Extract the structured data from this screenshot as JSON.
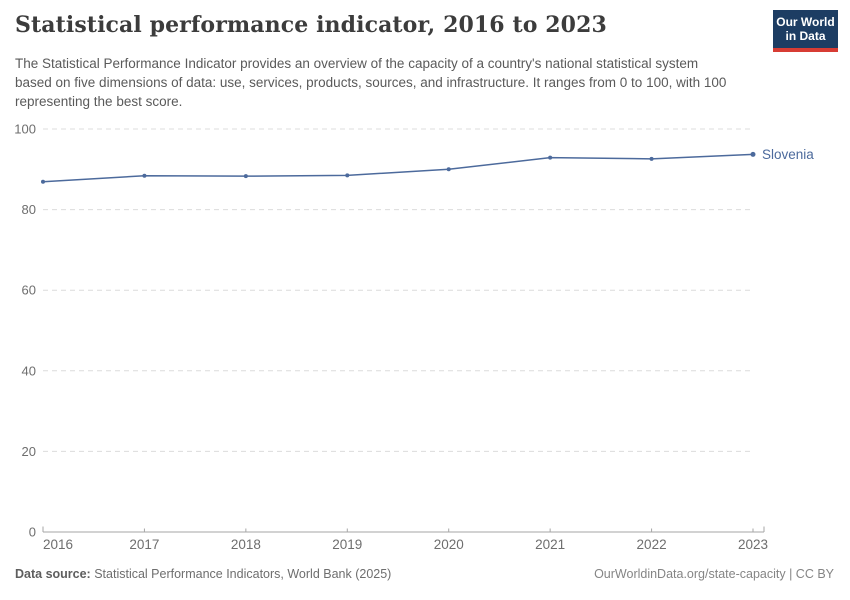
{
  "header": {
    "title": "Statistical performance indicator, 2016 to 2023",
    "subtitle": "The Statistical Performance Indicator provides an overview of the capacity of a country's national statistical system based on five dimensions of data: use, services, products, sources, and infrastructure. It ranges from 0 to 100, with 100 representing the best score.",
    "logo": {
      "line1": "Our World",
      "line2": "in Data",
      "bg_color": "#1d3d63",
      "accent_color": "#d73c34"
    }
  },
  "chart_data": {
    "type": "line",
    "title": "Statistical performance indicator, 2016 to 2023",
    "x": [
      2016,
      2017,
      2018,
      2019,
      2020,
      2021,
      2022,
      2023
    ],
    "series": [
      {
        "name": "Slovenia",
        "values": [
          86.9,
          88.4,
          88.3,
          88.5,
          90.0,
          92.9,
          92.6,
          93.7
        ],
        "color": "#4c6a9c"
      }
    ],
    "xlabel": "",
    "ylabel": "",
    "ylim": [
      0,
      100
    ],
    "yticks": [
      0,
      20,
      40,
      60,
      80,
      100
    ],
    "grid": "horizontal-dashed",
    "grid_color": "#dcdcdc",
    "axis_color": "#a6a6a6",
    "tick_label_color": "#6e6e6e",
    "legend": "end-of-line-label"
  },
  "footer": {
    "datasource_label": "Data source:",
    "datasource_value": "Statistical Performance Indicators, World Bank (2025)",
    "attribution": "OurWorldinData.org/state-capacity | CC BY"
  }
}
